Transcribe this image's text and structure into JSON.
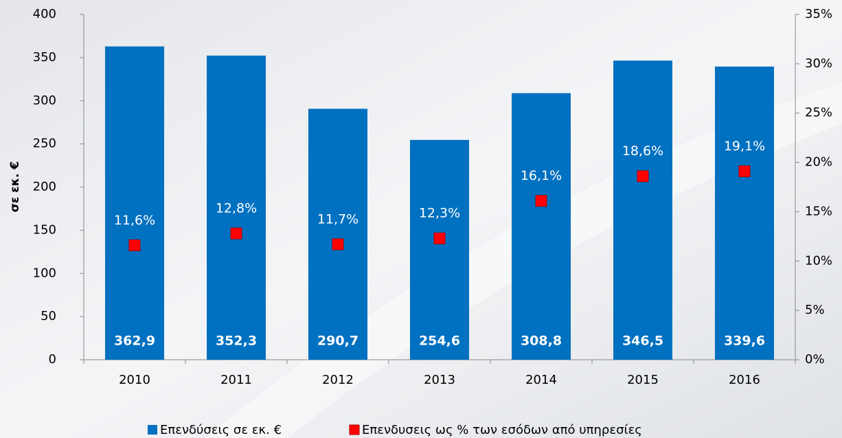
{
  "chart_data": {
    "type": "bar",
    "y_label": "σε εκ. €",
    "categories": [
      "2010",
      "2011",
      "2012",
      "2013",
      "2014",
      "2015",
      "2016"
    ],
    "series": [
      {
        "name": "Επενδύσεις σε εκ. €",
        "type": "bar",
        "color": "#0070c0",
        "values": [
          362.9,
          352.3,
          290.7,
          254.6,
          308.8,
          346.5,
          339.6
        ],
        "value_labels": [
          "362,9",
          "352,3",
          "290,7",
          "254,6",
          "308,8",
          "346,5",
          "339,6"
        ]
      },
      {
        "name": "Επενδυσεις ως % των εσόδων από υπηρεσίες",
        "type": "scatter",
        "axis": "y2",
        "color": "#ff0000",
        "values": [
          11.6,
          12.8,
          11.7,
          12.3,
          16.1,
          18.6,
          19.1
        ],
        "value_labels": [
          "11,6%",
          "12,8%",
          "11,7%",
          "12,3%",
          "16,1%",
          "18,6%",
          "19,1%"
        ]
      }
    ],
    "ylim": [
      0,
      400
    ],
    "yticks": [
      0,
      50,
      100,
      150,
      200,
      250,
      300,
      350,
      400
    ],
    "y2lim": [
      0,
      35
    ],
    "y2ticks": [
      {
        "value": 0,
        "label": "0%"
      },
      {
        "value": 5,
        "label": "5%"
      },
      {
        "value": 10,
        "label": "10%"
      },
      {
        "value": 15,
        "label": "15%"
      },
      {
        "value": 20,
        "label": "20%"
      },
      {
        "value": 25,
        "label": "25%"
      },
      {
        "value": 30,
        "label": "30%"
      },
      {
        "value": 35,
        "label": "35%"
      }
    ],
    "legend": "bottom"
  }
}
